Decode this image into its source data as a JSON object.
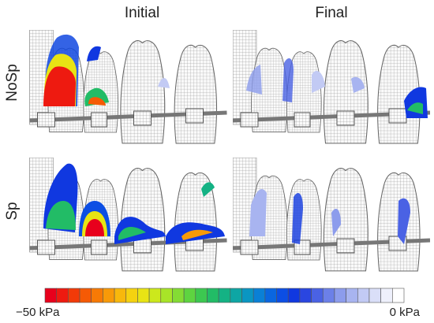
{
  "figure": {
    "columns": [
      "Initial",
      "Final"
    ],
    "rows": [
      "NoSp",
      "Sp"
    ],
    "colorbar": {
      "min_label": "−50 kPa",
      "max_label": "0 kPa",
      "colors": [
        "#e8001c",
        "#ee1a10",
        "#f23a08",
        "#f55a05",
        "#f77a05",
        "#f89a08",
        "#f8b80c",
        "#f5d210",
        "#e8e414",
        "#cce81c",
        "#a8e428",
        "#84dc34",
        "#5ed440",
        "#3cc850",
        "#22bc66",
        "#14b284",
        "#0ea6a4",
        "#0a96c2",
        "#0a80d6",
        "#0a66e0",
        "#0c4ee4",
        "#1038e0",
        "#2a46e0",
        "#4a62e4",
        "#6c80e8",
        "#8c9cec",
        "#a8b4f0",
        "#c2caf4",
        "#dadff8",
        "#eef0fc",
        "#ffffff"
      ]
    }
  }
}
